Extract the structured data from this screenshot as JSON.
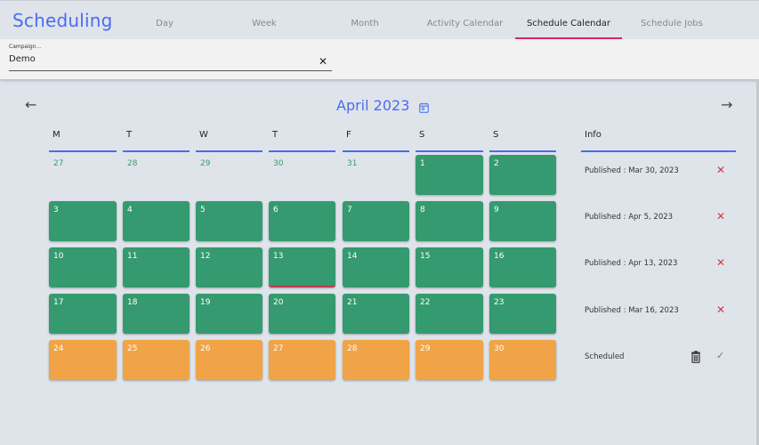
{
  "app": {
    "title": "Scheduling"
  },
  "tabs": [
    {
      "label": "Day",
      "active": false
    },
    {
      "label": "Week",
      "active": false
    },
    {
      "label": "Month",
      "active": false
    },
    {
      "label": "Activity Calendar",
      "active": false
    },
    {
      "label": "Schedule Calendar",
      "active": true
    },
    {
      "label": "Schedule Jobs",
      "active": false
    }
  ],
  "filter": {
    "campaign_label": "Campaign...",
    "campaign_value": "Demo",
    "clear_icon": "close-icon"
  },
  "calendar": {
    "month_title": "April 2023",
    "prev_icon": "arrow-left-icon",
    "next_icon": "arrow-right-icon",
    "calendar_icon": "calendar-icon",
    "weekdays": [
      "M",
      "T",
      "W",
      "T",
      "F",
      "S",
      "S"
    ],
    "weeks": [
      [
        {
          "day": "27",
          "status": "outside"
        },
        {
          "day": "28",
          "status": "outside"
        },
        {
          "day": "29",
          "status": "outside"
        },
        {
          "day": "30",
          "status": "outside"
        },
        {
          "day": "31",
          "status": "outside"
        },
        {
          "day": "1",
          "status": "published"
        },
        {
          "day": "2",
          "status": "published"
        }
      ],
      [
        {
          "day": "3",
          "status": "published"
        },
        {
          "day": "4",
          "status": "published"
        },
        {
          "day": "5",
          "status": "published"
        },
        {
          "day": "6",
          "status": "published"
        },
        {
          "day": "7",
          "status": "published"
        },
        {
          "day": "8",
          "status": "published"
        },
        {
          "day": "9",
          "status": "published"
        }
      ],
      [
        {
          "day": "10",
          "status": "published"
        },
        {
          "day": "11",
          "status": "published"
        },
        {
          "day": "12",
          "status": "published"
        },
        {
          "day": "13",
          "status": "published",
          "today": true
        },
        {
          "day": "14",
          "status": "published"
        },
        {
          "day": "15",
          "status": "published"
        },
        {
          "day": "16",
          "status": "published"
        }
      ],
      [
        {
          "day": "17",
          "status": "published"
        },
        {
          "day": "18",
          "status": "published"
        },
        {
          "day": "19",
          "status": "published"
        },
        {
          "day": "20",
          "status": "published"
        },
        {
          "day": "21",
          "status": "published"
        },
        {
          "day": "22",
          "status": "published"
        },
        {
          "day": "23",
          "status": "published"
        }
      ],
      [
        {
          "day": "24",
          "status": "scheduled"
        },
        {
          "day": "25",
          "status": "scheduled"
        },
        {
          "day": "26",
          "status": "scheduled"
        },
        {
          "day": "27",
          "status": "scheduled"
        },
        {
          "day": "28",
          "status": "scheduled"
        },
        {
          "day": "29",
          "status": "scheduled"
        },
        {
          "day": "30",
          "status": "scheduled"
        }
      ]
    ]
  },
  "info": {
    "header": "Info",
    "rows": [
      {
        "text": "Published : Mar 30, 2023",
        "action": "close-icon"
      },
      {
        "text": "Published : Apr 5, 2023",
        "action": "close-icon"
      },
      {
        "text": "Published : Apr 13, 2023",
        "action": "close-icon"
      },
      {
        "text": "Published : Mar 16, 2023",
        "action": "close-icon"
      },
      {
        "text": "Scheduled",
        "action": "check-icon",
        "secondary_action": "trash-icon"
      }
    ]
  },
  "colors": {
    "accent": "#4a6cf0",
    "active_tab_underline": "#e0245e",
    "published": "#359a6f",
    "scheduled": "#f0a447",
    "remove": "#d0393f",
    "confirm": "#3c9a6a",
    "background": "#dfe4eb"
  }
}
